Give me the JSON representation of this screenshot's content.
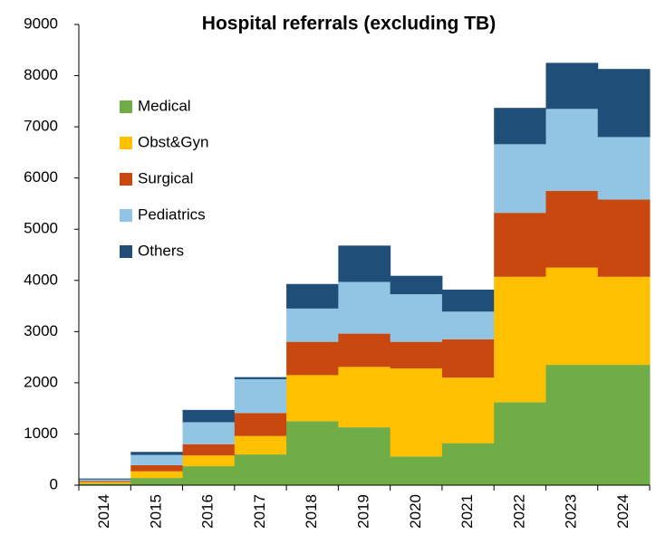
{
  "chart_data": {
    "type": "stacked_bar",
    "title": "Hospital referrals (excluding TB)",
    "categories": [
      "2014",
      "2015",
      "2016",
      "2017",
      "2018",
      "2019",
      "2020",
      "2021",
      "2022",
      "2023",
      "2024"
    ],
    "series": [
      {
        "name": "Medical",
        "color": "#70ad47",
        "values": [
          30,
          140,
          370,
          600,
          1250,
          1130,
          560,
          820,
          1620,
          2350,
          2350
        ]
      },
      {
        "name": "Obst&Gyn",
        "color": "#ffc000",
        "values": [
          30,
          130,
          210,
          360,
          900,
          1180,
          1720,
          1280,
          2450,
          1900,
          1720
        ]
      },
      {
        "name": "Surgical",
        "color": "#c9480f",
        "values": [
          20,
          120,
          220,
          450,
          650,
          650,
          520,
          750,
          1250,
          1500,
          1510
        ]
      },
      {
        "name": "Pediatrics",
        "color": "#92c5e3",
        "values": [
          30,
          200,
          430,
          660,
          650,
          1010,
          930,
          540,
          1340,
          1600,
          1220
        ]
      },
      {
        "name": "Others",
        "color": "#1f4e79",
        "values": [
          20,
          60,
          240,
          40,
          480,
          710,
          360,
          430,
          710,
          900,
          1330
        ]
      }
    ],
    "ylim": [
      0,
      9000
    ],
    "yticks": [
      0,
      1000,
      2000,
      3000,
      4000,
      5000,
      6000,
      7000,
      8000,
      9000
    ],
    "legend": "upper left"
  }
}
